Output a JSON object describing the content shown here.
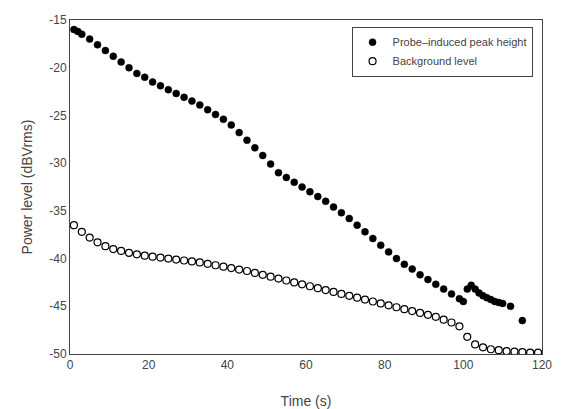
{
  "chart_data": {
    "type": "scatter",
    "xlabel": "Time (s)",
    "ylabel": "Power level (dBVrms)",
    "xlim": [
      0,
      120
    ],
    "ylim": [
      -50,
      -15
    ],
    "xticks": [
      0,
      20,
      40,
      60,
      80,
      100,
      120
    ],
    "yticks": [
      -50,
      -45,
      -40,
      -35,
      -30,
      -25,
      -20,
      -15
    ],
    "grid": false,
    "legend": "upper right",
    "series": [
      {
        "name": "Probe–induced peak height",
        "color": "black",
        "marker": "circle",
        "x": [
          1,
          2,
          3,
          5,
          7,
          9,
          11,
          13,
          15,
          17,
          19,
          21,
          23,
          25,
          27,
          29,
          31,
          33,
          35,
          37,
          39,
          41,
          43,
          45,
          47,
          49,
          51,
          53,
          55,
          57,
          59,
          61,
          63,
          65,
          67,
          69,
          71,
          73,
          75,
          77,
          79,
          81,
          83,
          85,
          87,
          89,
          91,
          93,
          95,
          97,
          99,
          100,
          101,
          102,
          103,
          104,
          105,
          106,
          107,
          108,
          109,
          110,
          112,
          115
        ],
        "values": [
          -16.0,
          -16.2,
          -16.5,
          -17.0,
          -17.6,
          -18.2,
          -18.8,
          -19.4,
          -20.0,
          -20.6,
          -21.0,
          -21.5,
          -21.9,
          -22.3,
          -22.7,
          -23.1,
          -23.5,
          -23.9,
          -24.4,
          -24.9,
          -25.4,
          -26.0,
          -26.8,
          -27.6,
          -28.4,
          -29.2,
          -30.1,
          -31.0,
          -31.5,
          -32.0,
          -32.5,
          -33.0,
          -33.5,
          -34.0,
          -34.6,
          -35.2,
          -35.8,
          -36.5,
          -37.2,
          -37.9,
          -38.6,
          -39.3,
          -40.0,
          -40.6,
          -41.1,
          -41.7,
          -42.2,
          -42.7,
          -43.2,
          -43.7,
          -44.2,
          -44.5,
          -43.2,
          -42.8,
          -43.2,
          -43.6,
          -43.9,
          -44.1,
          -44.3,
          -44.5,
          -44.6,
          -44.7,
          -45.0,
          -46.5
        ]
      },
      {
        "name": "Background level",
        "color": "black",
        "marker": "circle-open",
        "x": [
          1,
          3,
          5,
          7,
          9,
          11,
          13,
          15,
          17,
          19,
          21,
          23,
          25,
          27,
          29,
          31,
          33,
          35,
          37,
          39,
          41,
          43,
          45,
          47,
          49,
          51,
          53,
          55,
          57,
          59,
          61,
          63,
          65,
          67,
          69,
          71,
          73,
          75,
          77,
          79,
          81,
          83,
          85,
          87,
          89,
          91,
          93,
          95,
          97,
          99,
          101,
          103,
          105,
          107,
          109,
          111,
          113,
          115,
          117,
          119
        ],
        "values": [
          -36.5,
          -37.2,
          -37.8,
          -38.3,
          -38.7,
          -39.0,
          -39.2,
          -39.4,
          -39.55,
          -39.7,
          -39.8,
          -39.9,
          -40.0,
          -40.1,
          -40.2,
          -40.3,
          -40.4,
          -40.55,
          -40.7,
          -40.85,
          -41.0,
          -41.15,
          -41.3,
          -41.5,
          -41.7,
          -41.9,
          -42.1,
          -42.3,
          -42.5,
          -42.7,
          -42.9,
          -43.1,
          -43.3,
          -43.5,
          -43.7,
          -43.9,
          -44.1,
          -44.3,
          -44.5,
          -44.7,
          -44.9,
          -45.1,
          -45.3,
          -45.5,
          -45.7,
          -45.9,
          -46.1,
          -46.4,
          -46.7,
          -47.1,
          -48.2,
          -49.0,
          -49.3,
          -49.5,
          -49.6,
          -49.7,
          -49.75,
          -49.8,
          -49.85,
          -49.85
        ]
      }
    ]
  }
}
